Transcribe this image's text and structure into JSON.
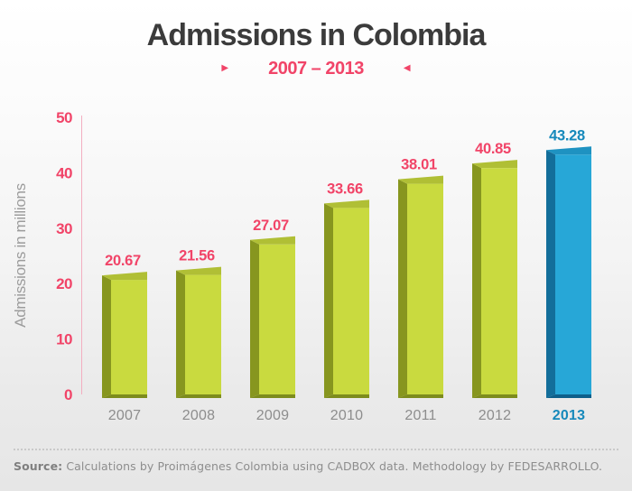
{
  "header": {
    "title": "Admissions in Colombia",
    "subtitle": "2007 – 2013",
    "left_arrow_glyph": "▶",
    "right_arrow_glyph": "◀"
  },
  "colors": {
    "pink": "#f14468",
    "axis_line_pink": "#f3aec0",
    "title_gray": "#3b3b3b",
    "year_gray": "#8d8d8d",
    "ylabel_gray": "#9c9c9c",
    "green_front": "#c9da3f",
    "green_side": "#87961f",
    "green_top": "#b0bf35",
    "green_bottom": "#7d8c1d",
    "blue_front": "#27a7d7",
    "blue_side": "#136e9a",
    "blue_top": "#1e92c1",
    "blue_bottom": "#0e5f8a",
    "blue_text": "#1689bb"
  },
  "chart_data": {
    "type": "bar",
    "title": "Admissions in Colombia",
    "subtitle": "2007 – 2013",
    "categories": [
      "2007",
      "2008",
      "2009",
      "2010",
      "2011",
      "2012",
      "2013"
    ],
    "values": [
      20.67,
      21.56,
      27.07,
      33.66,
      38.01,
      40.85,
      43.28
    ],
    "value_labels": [
      "20.67",
      "21.56",
      "27.07",
      "33.66",
      "38.01",
      "40.85",
      "43.28"
    ],
    "ylabel": "Admissions in millions",
    "xlabel": "",
    "yticks": [
      0,
      10,
      20,
      30,
      40,
      50
    ],
    "ylim": [
      0,
      50
    ],
    "grid": false,
    "legend": null,
    "highlight_category": "2013",
    "style": "pseudo-3d bars, lime green for 2007-2012, blue highlight for 2013"
  },
  "footer": {
    "source_label": "Source:",
    "source_text": " Calculations by Proimágenes Colombia using CADBOX data. Methodology by FEDESARROLLO."
  }
}
